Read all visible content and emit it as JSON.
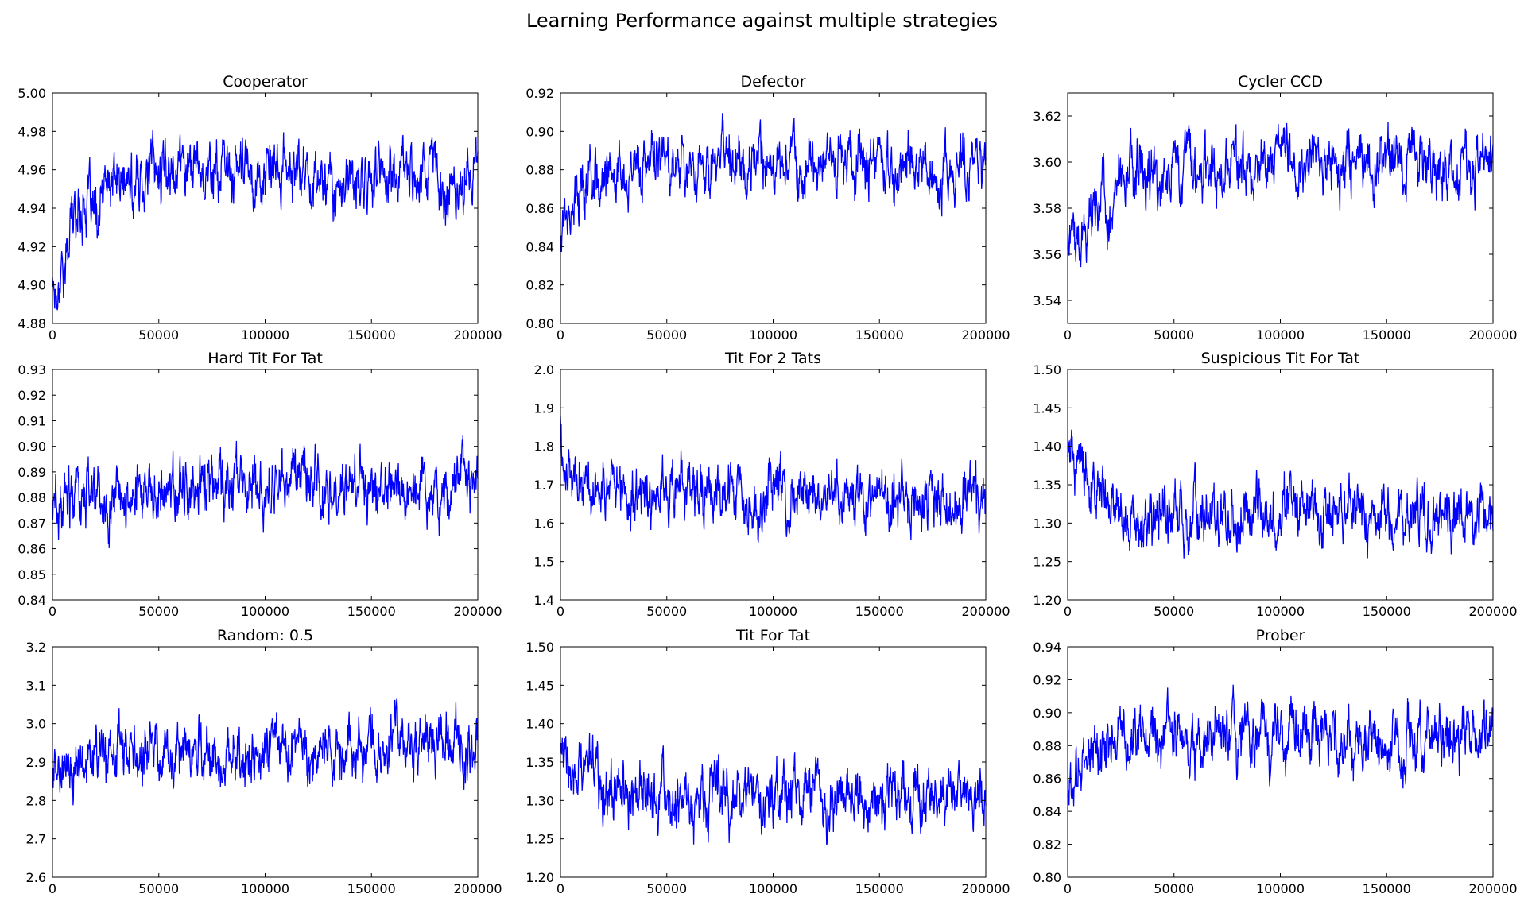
{
  "figure": {
    "title": "Learning Performance against multiple strategies"
  },
  "chart_data": [
    {
      "type": "line",
      "title": "Cooperator",
      "xlim": [
        0,
        200000
      ],
      "ylim": [
        4.88,
        5.0
      ],
      "xticks": [
        0,
        50000,
        100000,
        150000,
        200000
      ],
      "yticks": [
        4.88,
        4.9,
        4.92,
        4.94,
        4.96,
        4.98,
        5.0
      ],
      "ydecimals": 2,
      "series": [
        {
          "color": "#0000ff",
          "x": [
            0,
            2000,
            4000,
            6000,
            8000,
            10000,
            12000,
            15000,
            18000,
            21000,
            25000,
            30000,
            35000,
            40000,
            45000,
            50000,
            55000,
            60000,
            70000,
            80000,
            90000,
            100000,
            110000,
            120000,
            130000,
            140000,
            150000,
            160000,
            170000,
            180000,
            185000,
            190000,
            195000,
            200000
          ],
          "y": [
            4.905,
            4.895,
            4.915,
            4.905,
            4.93,
            4.935,
            4.94,
            4.945,
            4.94,
            4.93,
            4.95,
            4.955,
            4.95,
            4.952,
            4.962,
            4.958,
            4.962,
            4.965,
            4.962,
            4.958,
            4.96,
            4.955,
            4.96,
            4.958,
            4.955,
            4.95,
            4.955,
            4.958,
            4.962,
            4.96,
            4.945,
            4.955,
            4.958,
            4.96
          ]
        }
      ]
    },
    {
      "type": "line",
      "title": "Defector",
      "xlim": [
        0,
        200000
      ],
      "ylim": [
        0.8,
        0.92
      ],
      "xticks": [
        0,
        50000,
        100000,
        150000,
        200000
      ],
      "yticks": [
        0.8,
        0.82,
        0.84,
        0.86,
        0.88,
        0.9,
        0.92
      ],
      "ydecimals": 2,
      "series": [
        {
          "color": "#0000ff",
          "x": [
            0,
            2000,
            5000,
            8000,
            12000,
            16000,
            20000,
            25000,
            30000,
            40000,
            50000,
            60000,
            70000,
            80000,
            90000,
            100000,
            110000,
            120000,
            130000,
            140000,
            150000,
            160000,
            170000,
            180000,
            190000,
            200000
          ],
          "y": [
            0.845,
            0.86,
            0.862,
            0.865,
            0.872,
            0.876,
            0.87,
            0.875,
            0.885,
            0.88,
            0.885,
            0.883,
            0.886,
            0.884,
            0.882,
            0.884,
            0.885,
            0.882,
            0.884,
            0.886,
            0.88,
            0.882,
            0.885,
            0.88,
            0.882,
            0.884
          ]
        }
      ]
    },
    {
      "type": "line",
      "title": "Cycler CCD",
      "xlim": [
        0,
        200000
      ],
      "ylim": [
        3.53,
        3.63
      ],
      "xticks": [
        0,
        50000,
        100000,
        150000,
        200000
      ],
      "yticks": [
        3.54,
        3.56,
        3.58,
        3.6,
        3.62
      ],
      "ydecimals": 2,
      "series": [
        {
          "color": "#0000ff",
          "x": [
            0,
            2000,
            4000,
            6000,
            8000,
            10000,
            14000,
            18000,
            22000,
            26000,
            30000,
            40000,
            50000,
            60000,
            70000,
            80000,
            90000,
            100000,
            110000,
            120000,
            130000,
            140000,
            150000,
            160000,
            170000,
            180000,
            190000,
            200000
          ],
          "y": [
            3.565,
            3.57,
            3.563,
            3.567,
            3.572,
            3.575,
            3.58,
            3.582,
            3.585,
            3.59,
            3.594,
            3.592,
            3.596,
            3.598,
            3.6,
            3.599,
            3.601,
            3.6,
            3.599,
            3.601,
            3.6,
            3.598,
            3.602,
            3.603,
            3.6,
            3.599,
            3.598,
            3.6
          ]
        }
      ]
    },
    {
      "type": "line",
      "title": "Hard Tit For Tat",
      "xlim": [
        0,
        200000
      ],
      "ylim": [
        0.84,
        0.93
      ],
      "xticks": [
        0,
        50000,
        100000,
        150000,
        200000
      ],
      "yticks": [
        0.84,
        0.85,
        0.86,
        0.87,
        0.88,
        0.89,
        0.9,
        0.91,
        0.92,
        0.93
      ],
      "ydecimals": 2,
      "series": [
        {
          "color": "#0000ff",
          "x": [
            0,
            5000,
            10000,
            20000,
            30000,
            40000,
            50000,
            60000,
            70000,
            80000,
            90000,
            100000,
            110000,
            120000,
            130000,
            140000,
            150000,
            160000,
            170000,
            180000,
            190000,
            200000
          ],
          "y": [
            0.875,
            0.877,
            0.879,
            0.881,
            0.882,
            0.885,
            0.886,
            0.884,
            0.886,
            0.885,
            0.886,
            0.885,
            0.887,
            0.886,
            0.885,
            0.884,
            0.882,
            0.886,
            0.885,
            0.883,
            0.885,
            0.886
          ]
        }
      ]
    },
    {
      "type": "line",
      "title": "Tit For 2 Tats",
      "xlim": [
        0,
        200000
      ],
      "ylim": [
        1.4,
        2.0
      ],
      "xticks": [
        0,
        50000,
        100000,
        150000,
        200000
      ],
      "yticks": [
        1.4,
        1.5,
        1.6,
        1.7,
        1.8,
        1.9,
        2.0
      ],
      "ydecimals": 1,
      "series": [
        {
          "color": "#0000ff",
          "x": [
            0,
            1000,
            3000,
            6000,
            10000,
            20000,
            30000,
            40000,
            50000,
            60000,
            70000,
            80000,
            90000,
            100000,
            110000,
            120000,
            130000,
            140000,
            150000,
            160000,
            170000,
            180000,
            190000,
            200000
          ],
          "y": [
            1.85,
            1.78,
            1.75,
            1.73,
            1.72,
            1.71,
            1.69,
            1.68,
            1.67,
            1.68,
            1.67,
            1.67,
            1.66,
            1.67,
            1.68,
            1.66,
            1.67,
            1.66,
            1.67,
            1.65,
            1.66,
            1.65,
            1.66,
            1.66
          ]
        }
      ]
    },
    {
      "type": "line",
      "title": "Suspicious Tit For Tat",
      "xlim": [
        0,
        200000
      ],
      "ylim": [
        1.2,
        1.5
      ],
      "xticks": [
        0,
        50000,
        100000,
        150000,
        200000
      ],
      "yticks": [
        1.2,
        1.25,
        1.3,
        1.35,
        1.4,
        1.45,
        1.5
      ],
      "ydecimals": 2,
      "series": [
        {
          "color": "#0000ff",
          "x": [
            0,
            3000,
            6000,
            9000,
            12000,
            16000,
            20000,
            30000,
            40000,
            50000,
            60000,
            70000,
            80000,
            90000,
            100000,
            110000,
            120000,
            130000,
            140000,
            150000,
            160000,
            170000,
            180000,
            190000,
            200000
          ],
          "y": [
            1.39,
            1.385,
            1.375,
            1.37,
            1.345,
            1.33,
            1.32,
            1.31,
            1.315,
            1.31,
            1.315,
            1.305,
            1.31,
            1.315,
            1.31,
            1.312,
            1.305,
            1.31,
            1.305,
            1.31,
            1.305,
            1.31,
            1.305,
            1.31,
            1.305
          ]
        }
      ]
    },
    {
      "type": "line",
      "title": "Random: 0.5",
      "xlim": [
        0,
        200000
      ],
      "ylim": [
        2.6,
        3.2
      ],
      "xticks": [
        0,
        50000,
        100000,
        150000,
        200000
      ],
      "yticks": [
        2.6,
        2.7,
        2.8,
        2.9,
        3.0,
        3.1,
        3.2
      ],
      "ydecimals": 1,
      "series": [
        {
          "color": "#0000ff",
          "x": [
            0,
            10000,
            20000,
            30000,
            40000,
            50000,
            60000,
            70000,
            80000,
            90000,
            100000,
            110000,
            120000,
            130000,
            140000,
            150000,
            160000,
            170000,
            180000,
            190000,
            200000
          ],
          "y": [
            2.87,
            2.9,
            2.9,
            2.92,
            2.92,
            2.93,
            2.91,
            2.92,
            2.91,
            2.92,
            2.91,
            2.93,
            2.92,
            2.91,
            2.93,
            2.95,
            2.94,
            2.93,
            2.94,
            2.93,
            2.92
          ]
        }
      ]
    },
    {
      "type": "line",
      "title": "Tit For Tat",
      "xlim": [
        0,
        200000
      ],
      "ylim": [
        1.2,
        1.5
      ],
      "xticks": [
        0,
        50000,
        100000,
        150000,
        200000
      ],
      "yticks": [
        1.2,
        1.25,
        1.3,
        1.35,
        1.4,
        1.45,
        1.5
      ],
      "ydecimals": 2,
      "series": [
        {
          "color": "#0000ff",
          "x": [
            0,
            2000,
            5000,
            10000,
            20000,
            30000,
            40000,
            50000,
            60000,
            70000,
            80000,
            90000,
            100000,
            110000,
            120000,
            130000,
            140000,
            150000,
            160000,
            170000,
            180000,
            190000,
            200000
          ],
          "y": [
            1.35,
            1.34,
            1.33,
            1.33,
            1.325,
            1.32,
            1.315,
            1.305,
            1.3,
            1.31,
            1.305,
            1.31,
            1.305,
            1.31,
            1.305,
            1.3,
            1.305,
            1.31,
            1.305,
            1.31,
            1.305,
            1.31,
            1.31
          ]
        }
      ]
    },
    {
      "type": "line",
      "title": "Prober",
      "xlim": [
        0,
        200000
      ],
      "ylim": [
        0.8,
        0.94
      ],
      "xticks": [
        0,
        50000,
        100000,
        150000,
        200000
      ],
      "yticks": [
        0.8,
        0.82,
        0.84,
        0.86,
        0.88,
        0.9,
        0.92,
        0.94
      ],
      "ydecimals": 2,
      "series": [
        {
          "color": "#0000ff",
          "x": [
            0,
            2000,
            4000,
            7000,
            10000,
            15000,
            20000,
            30000,
            40000,
            50000,
            60000,
            70000,
            80000,
            90000,
            100000,
            110000,
            120000,
            130000,
            140000,
            150000,
            160000,
            170000,
            180000,
            190000,
            200000
          ],
          "y": [
            0.85,
            0.855,
            0.86,
            0.868,
            0.875,
            0.88,
            0.882,
            0.885,
            0.884,
            0.886,
            0.885,
            0.888,
            0.886,
            0.884,
            0.882,
            0.884,
            0.885,
            0.883,
            0.884,
            0.885,
            0.883,
            0.884,
            0.885,
            0.884,
            0.883
          ]
        }
      ]
    }
  ]
}
